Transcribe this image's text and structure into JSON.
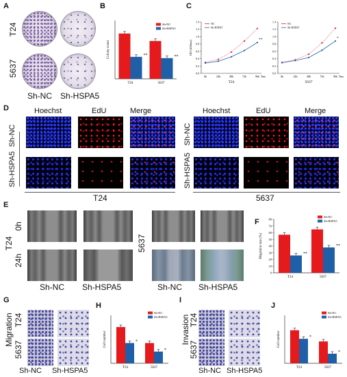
{
  "panels": {
    "A": "A",
    "B": "B",
    "C": "C",
    "D": "D",
    "E": "E",
    "F": "F",
    "G": "G",
    "H": "H",
    "I": "I",
    "J": "J"
  },
  "panel_a": {
    "rows": [
      "T24",
      "5637"
    ],
    "cols": [
      "Sh-NC",
      "Sh-HSPA5"
    ]
  },
  "panel_d": {
    "channels": [
      "Hoechst",
      "EdU",
      "Merge"
    ],
    "rows_left": [
      "Sh-NC",
      "Sh-HSPA5"
    ],
    "rows_right": [
      "Sh-NC",
      "Sh-HSPA5"
    ],
    "groups": [
      "T24",
      "5637"
    ]
  },
  "panel_e": {
    "times": [
      "0h",
      "24h"
    ],
    "cell_t24": "T24",
    "cell_5637": "5637",
    "cols": [
      "Sh-NC",
      "Sh-HSPA5",
      "Sh-NC",
      "Sh-HSPA5"
    ]
  },
  "panel_g": {
    "assay": "Migration",
    "rows": [
      "T24",
      "5637"
    ],
    "cols": [
      "Sh-NC",
      "Sh-HSPA5"
    ]
  },
  "panel_i": {
    "assay": "Invasion",
    "rows": [
      "T24",
      "5637"
    ],
    "cols": [
      "Sh-NC",
      "Sh-HSPA5"
    ]
  },
  "colors": {
    "nc": "#e41a1c",
    "hspa5": "#1f5fa8"
  },
  "chart_data": [
    {
      "id": "B",
      "type": "bar",
      "categories": [
        "T24",
        "5637"
      ],
      "series": [
        {
          "name": "Sh-NC",
          "values": [
            1.4,
            1.17
          ]
        },
        {
          "name": "Sh-HSPA5",
          "values": [
            0.68,
            0.64
          ]
        }
      ],
      "ylabel": "Colony count",
      "ylim": [
        0,
        1.8
      ],
      "significance": [
        "**",
        "**"
      ],
      "legend": "top-right"
    },
    {
      "id": "C1",
      "type": "line",
      "x": [
        "0h",
        "24h",
        "48h",
        "72h",
        "96h"
      ],
      "xunit": "Time",
      "series": [
        {
          "name": "NC",
          "values": [
            0.3,
            0.38,
            0.58,
            0.88,
            1.22
          ]
        },
        {
          "name": "Sh-HSPA5",
          "values": [
            0.28,
            0.33,
            0.45,
            0.62,
            0.84
          ]
        }
      ],
      "ylabel": "OD (450nm)",
      "title": "T24",
      "ylim": [
        0,
        1.4
      ],
      "yticks": [
        "0.0",
        "0.2",
        "0.4",
        "0.6",
        "0.8",
        "1.0",
        "1.2",
        "1.4"
      ],
      "significance": "**",
      "legend": "top-left"
    },
    {
      "id": "C2",
      "type": "line",
      "x": [
        "0h",
        "24h",
        "48h",
        "72h",
        "96h"
      ],
      "xunit": "Time",
      "series": [
        {
          "name": "NC",
          "values": [
            0.3,
            0.37,
            0.52,
            0.83,
            1.23
          ]
        },
        {
          "name": "Sh-HSPA5",
          "values": [
            0.29,
            0.35,
            0.43,
            0.63,
            0.88
          ]
        }
      ],
      "ylabel": "",
      "title": "5637",
      "ylim": [
        0,
        1.4
      ],
      "yticks": [
        "0.0",
        "0.2",
        "0.4",
        "0.6",
        "0.8",
        "1.0",
        "1.2",
        "1.4"
      ],
      "significance": "*",
      "legend": "top-left"
    },
    {
      "id": "F",
      "type": "bar",
      "categories": [
        "T24",
        "5637"
      ],
      "series": [
        {
          "name": "Sh-NC",
          "values": [
            57,
            65
          ]
        },
        {
          "name": "Sh-HSPA5",
          "values": [
            26,
            38
          ]
        }
      ],
      "ylabel": "Migration rate (%)",
      "ylim": [
        0,
        80
      ],
      "yticks": [
        "0",
        "10",
        "20",
        "30",
        "40",
        "50",
        "60",
        "70",
        "80"
      ],
      "significance": [
        "**",
        "**"
      ],
      "legend": "top-right"
    },
    {
      "id": "H",
      "type": "bar",
      "categories": [
        "T24",
        "5637"
      ],
      "series": [
        {
          "name": "Sh-NC",
          "values": [
            340,
            190
          ]
        },
        {
          "name": "Sh-HSPA5",
          "values": [
            190,
            110
          ]
        }
      ],
      "ylabel": "Cell number",
      "ylim": [
        0,
        450
      ],
      "significance": [
        "*",
        "*"
      ],
      "legend": "top-right"
    },
    {
      "id": "J",
      "type": "bar",
      "categories": [
        "T24",
        "5637"
      ],
      "series": [
        {
          "name": "Sh-NC",
          "values": [
            310,
            205
          ]
        },
        {
          "name": "Sh-HSPA5",
          "values": [
            230,
            90
          ]
        }
      ],
      "ylabel": "Cell number",
      "ylim": [
        0,
        450
      ],
      "significance": [
        "*",
        "*"
      ],
      "legend": "top-right"
    }
  ]
}
